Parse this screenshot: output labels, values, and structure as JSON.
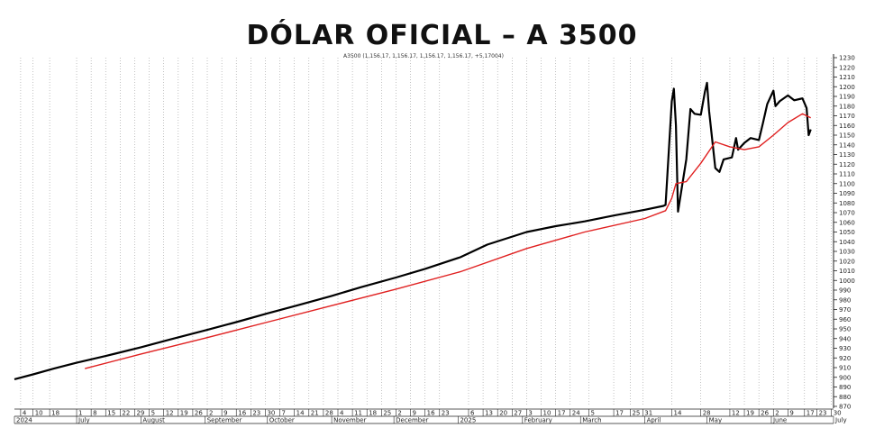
{
  "chart_data": {
    "type": "line",
    "title": "DÓLAR OFICIAL – A 3500",
    "subtitle": "A3500 (1,156.17, 1,156.17, 1,156.17, 1,156.17, +5.17004)",
    "ylim": [
      870,
      1230
    ],
    "y_ticks": [
      870,
      880,
      890,
      900,
      910,
      920,
      930,
      940,
      950,
      960,
      970,
      980,
      990,
      1000,
      1010,
      1020,
      1030,
      1040,
      1050,
      1060,
      1070,
      1080,
      1090,
      1100,
      1110,
      1120,
      1130,
      1140,
      1150,
      1160,
      1170,
      1180,
      1190,
      1200,
      1210,
      1220,
      1230
    ],
    "x_day_ticks": [
      {
        "date": "2024-06-04",
        "label": "4"
      },
      {
        "date": "2024-06-10",
        "label": "10"
      },
      {
        "date": "2024-06-18",
        "label": "18"
      },
      {
        "date": "2024-07-01",
        "label": "1"
      },
      {
        "date": "2024-07-08",
        "label": "8"
      },
      {
        "date": "2024-07-15",
        "label": "15"
      },
      {
        "date": "2024-07-22",
        "label": "22"
      },
      {
        "date": "2024-07-29",
        "label": "29"
      },
      {
        "date": "2024-08-05",
        "label": "5"
      },
      {
        "date": "2024-08-12",
        "label": "12"
      },
      {
        "date": "2024-08-19",
        "label": "19"
      },
      {
        "date": "2024-08-26",
        "label": "26"
      },
      {
        "date": "2024-09-02",
        "label": "2"
      },
      {
        "date": "2024-09-09",
        "label": "9"
      },
      {
        "date": "2024-09-16",
        "label": "16"
      },
      {
        "date": "2024-09-23",
        "label": "23"
      },
      {
        "date": "2024-09-30",
        "label": "30"
      },
      {
        "date": "2024-10-07",
        "label": "7"
      },
      {
        "date": "2024-10-14",
        "label": "14"
      },
      {
        "date": "2024-10-21",
        "label": "21"
      },
      {
        "date": "2024-10-28",
        "label": "28"
      },
      {
        "date": "2024-11-04",
        "label": "4"
      },
      {
        "date": "2024-11-11",
        "label": "11"
      },
      {
        "date": "2024-11-18",
        "label": "18"
      },
      {
        "date": "2024-11-25",
        "label": "25"
      },
      {
        "date": "2024-12-02",
        "label": "2"
      },
      {
        "date": "2024-12-09",
        "label": "9"
      },
      {
        "date": "2024-12-16",
        "label": "16"
      },
      {
        "date": "2024-12-23",
        "label": "23"
      },
      {
        "date": "2025-01-06",
        "label": "6"
      },
      {
        "date": "2025-01-13",
        "label": "13"
      },
      {
        "date": "2025-01-20",
        "label": "20"
      },
      {
        "date": "2025-01-27",
        "label": "27"
      },
      {
        "date": "2025-02-03",
        "label": "3"
      },
      {
        "date": "2025-02-10",
        "label": "10"
      },
      {
        "date": "2025-02-17",
        "label": "17"
      },
      {
        "date": "2025-02-24",
        "label": "24"
      },
      {
        "date": "2025-03-05",
        "label": "5"
      },
      {
        "date": "2025-03-17",
        "label": "17"
      },
      {
        "date": "2025-03-25",
        "label": "25"
      },
      {
        "date": "2025-03-31",
        "label": "31"
      },
      {
        "date": "2025-04-14",
        "label": "14"
      },
      {
        "date": "2025-04-28",
        "label": "28"
      },
      {
        "date": "2025-05-12",
        "label": "12"
      },
      {
        "date": "2025-05-19",
        "label": "19"
      },
      {
        "date": "2025-05-26",
        "label": "26"
      },
      {
        "date": "2025-06-02",
        "label": "2"
      },
      {
        "date": "2025-06-09",
        "label": "9"
      },
      {
        "date": "2025-06-17",
        "label": "17"
      },
      {
        "date": "2025-06-23",
        "label": "23"
      },
      {
        "date": "2025-06-30",
        "label": "30"
      }
    ],
    "x_month_labels": [
      {
        "date": "2024-06-01",
        "label": "2024"
      },
      {
        "date": "2024-07-01",
        "label": "July"
      },
      {
        "date": "2024-08-01",
        "label": "August"
      },
      {
        "date": "2024-09-01",
        "label": "September"
      },
      {
        "date": "2024-10-01",
        "label": "October"
      },
      {
        "date": "2024-11-01",
        "label": "November"
      },
      {
        "date": "2024-12-01",
        "label": "December"
      },
      {
        "date": "2025-01-01",
        "label": "2025"
      },
      {
        "date": "2025-02-01",
        "label": "February"
      },
      {
        "date": "2025-03-01",
        "label": "March"
      },
      {
        "date": "2025-04-01",
        "label": "April"
      },
      {
        "date": "2025-05-01",
        "label": "May"
      },
      {
        "date": "2025-06-01",
        "label": "June"
      },
      {
        "date": "2025-07-01",
        "label": "July"
      }
    ],
    "grid": "vertical dotted",
    "series": [
      {
        "color": "#000000",
        "points": [
          [
            "2024-06-01",
            898
          ],
          [
            "2024-06-10",
            903
          ],
          [
            "2024-06-20",
            909
          ],
          [
            "2024-07-01",
            915
          ],
          [
            "2024-07-15",
            922
          ],
          [
            "2024-08-01",
            931
          ],
          [
            "2024-08-15",
            939
          ],
          [
            "2024-09-02",
            949
          ],
          [
            "2024-09-16",
            957
          ],
          [
            "2024-10-01",
            966
          ],
          [
            "2024-10-15",
            974
          ],
          [
            "2024-11-01",
            984
          ],
          [
            "2024-11-15",
            993
          ],
          [
            "2024-12-02",
            1003
          ],
          [
            "2024-12-16",
            1012
          ],
          [
            "2025-01-02",
            1024
          ],
          [
            "2025-01-15",
            1037
          ],
          [
            "2025-02-03",
            1050
          ],
          [
            "2025-02-17",
            1056
          ],
          [
            "2025-03-03",
            1061
          ],
          [
            "2025-03-17",
            1067
          ],
          [
            "2025-04-01",
            1073
          ],
          [
            "2025-04-10",
            1077
          ],
          [
            "2025-04-11",
            1078
          ],
          [
            "2025-04-14",
            1185
          ],
          [
            "2025-04-15",
            1198
          ],
          [
            "2025-04-16",
            1160
          ],
          [
            "2025-04-17",
            1071
          ],
          [
            "2025-04-21",
            1125
          ],
          [
            "2025-04-23",
            1177
          ],
          [
            "2025-04-25",
            1172
          ],
          [
            "2025-04-28",
            1171
          ],
          [
            "2025-04-30",
            1195
          ],
          [
            "2025-05-01",
            1204
          ],
          [
            "2025-05-02",
            1175
          ],
          [
            "2025-05-05",
            1116
          ],
          [
            "2025-05-07",
            1112
          ],
          [
            "2025-05-09",
            1125
          ],
          [
            "2025-05-13",
            1127
          ],
          [
            "2025-05-15",
            1147
          ],
          [
            "2025-05-16",
            1135
          ],
          [
            "2025-05-19",
            1142
          ],
          [
            "2025-05-22",
            1147
          ],
          [
            "2025-05-26",
            1145
          ],
          [
            "2025-05-28",
            1163
          ],
          [
            "2025-05-30",
            1182
          ],
          [
            "2025-06-02",
            1196
          ],
          [
            "2025-06-03",
            1180
          ],
          [
            "2025-06-05",
            1185
          ],
          [
            "2025-06-09",
            1191
          ],
          [
            "2025-06-12",
            1186
          ],
          [
            "2025-06-16",
            1188
          ],
          [
            "2025-06-18",
            1178
          ],
          [
            "2025-06-19",
            1150
          ],
          [
            "2025-06-20",
            1156
          ]
        ]
      },
      {
        "color": "#e02020",
        "points": [
          [
            "2024-07-05",
            909
          ],
          [
            "2024-08-01",
            924
          ],
          [
            "2024-09-02",
            941
          ],
          [
            "2024-10-01",
            957
          ],
          [
            "2024-11-01",
            974
          ],
          [
            "2024-12-02",
            991
          ],
          [
            "2025-01-02",
            1009
          ],
          [
            "2025-02-03",
            1033
          ],
          [
            "2025-03-03",
            1050
          ],
          [
            "2025-04-01",
            1064
          ],
          [
            "2025-04-11",
            1072
          ],
          [
            "2025-04-14",
            1085
          ],
          [
            "2025-04-16",
            1100
          ],
          [
            "2025-04-21",
            1102
          ],
          [
            "2025-04-28",
            1121
          ],
          [
            "2025-05-05",
            1143
          ],
          [
            "2025-05-12",
            1138
          ],
          [
            "2025-05-19",
            1135
          ],
          [
            "2025-05-26",
            1138
          ],
          [
            "2025-06-02",
            1150
          ],
          [
            "2025-06-09",
            1163
          ],
          [
            "2025-06-16",
            1172
          ],
          [
            "2025-06-20",
            1168
          ]
        ]
      }
    ]
  }
}
